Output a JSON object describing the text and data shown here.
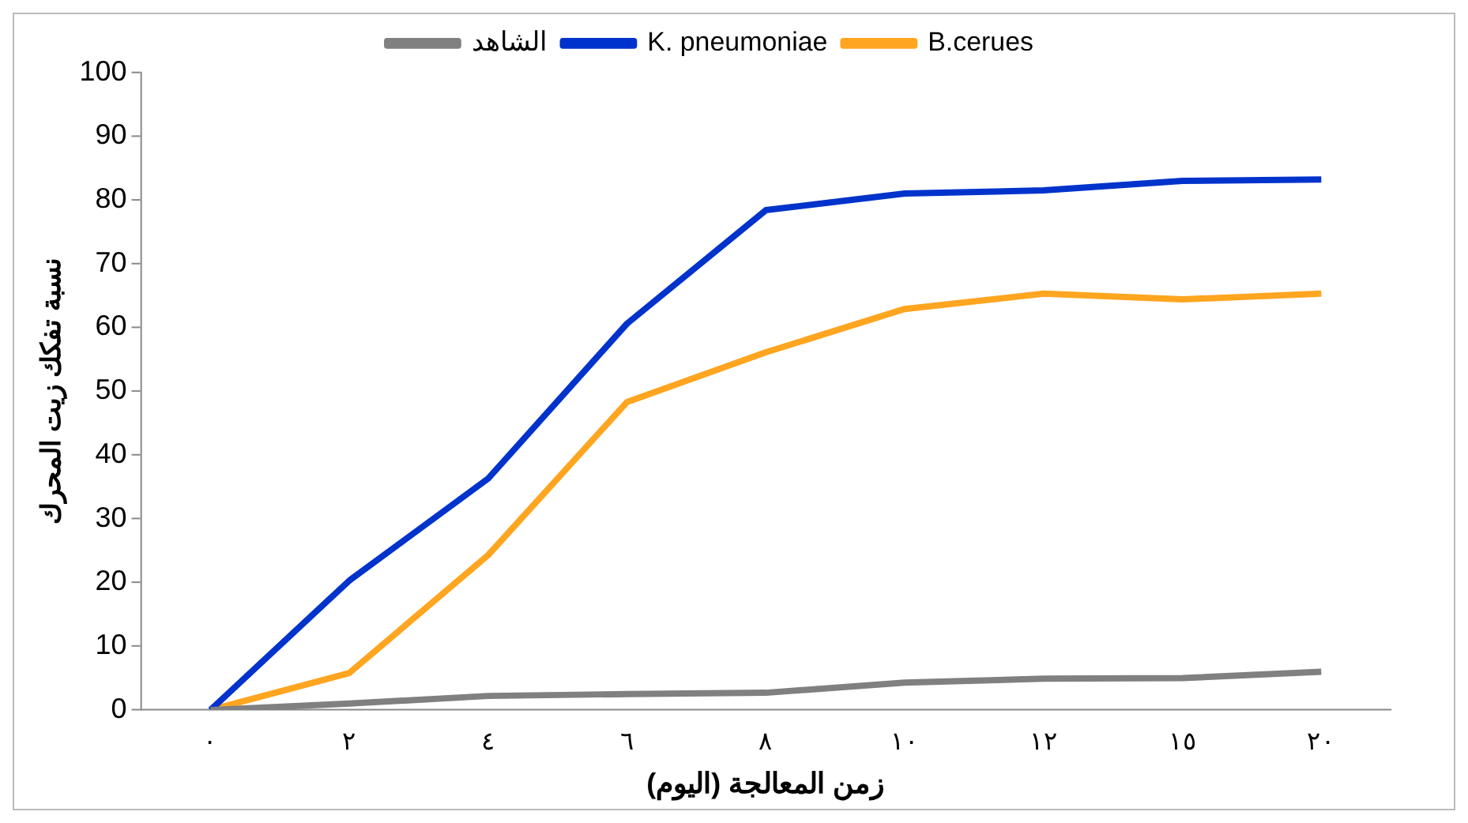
{
  "chart_data": {
    "type": "line",
    "xlabel": "زمن المعالجة (اليوم)",
    "ylabel": "نسبة تفكك زيت المحرك",
    "categories": [
      "٠",
      "٢",
      "٤",
      "٦",
      "٨",
      "١٠",
      "١٢",
      "١٥",
      "٢٠"
    ],
    "series": [
      {
        "name": "الشاهد",
        "color": "#808080",
        "values": [
          0,
          1,
          2.2,
          2.5,
          2.7,
          4.3,
          4.9,
          5,
          6
        ]
      },
      {
        "name": "K. pneumoniae",
        "color": "#0033cc",
        "values": [
          0,
          20.3,
          36.3,
          60.6,
          78.4,
          81,
          81.5,
          83,
          83.2
        ]
      },
      {
        "name": "B.cerues",
        "color": "#ffa51f",
        "values": [
          0,
          5.8,
          24.3,
          48.3,
          56.1,
          62.9,
          65.3,
          64.4,
          65.3
        ]
      }
    ],
    "ylim": [
      0,
      100
    ],
    "yticks": [
      0,
      10,
      20,
      30,
      40,
      50,
      60,
      70,
      80,
      90,
      100
    ],
    "grid": false,
    "legend": "top",
    "marker": "none",
    "line_style": "solid"
  }
}
